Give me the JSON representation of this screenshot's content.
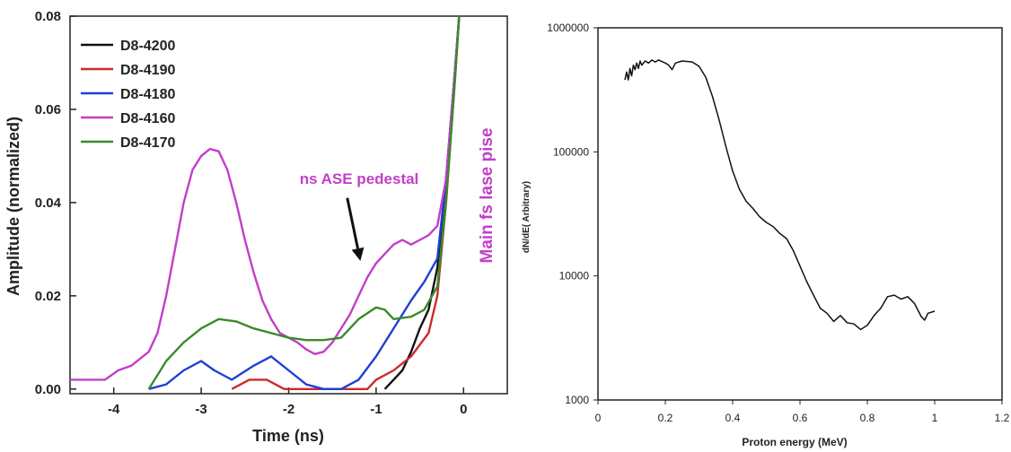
{
  "chart_data": [
    {
      "type": "line",
      "xlabel": "Time (ns)",
      "ylabel": "Amplitude (normalized)",
      "xlim": [
        -4.5,
        0.5
      ],
      "ylim": [
        -0.001,
        0.08
      ],
      "x_ticks": [
        -4,
        -3,
        -2,
        -1,
        0
      ],
      "x_tick_labels": [
        "-4",
        "-3",
        "-2",
        "-1",
        "0"
      ],
      "y_ticks": [
        0.0,
        0.02,
        0.04,
        0.06,
        0.08
      ],
      "y_tick_labels": [
        "0.00",
        "0.02",
        "0.04",
        "0.06",
        "0.08"
      ],
      "grid": false,
      "legend_position": "top-left",
      "annotations": [
        {
          "text": "ns ASE pedestal",
          "color": "#c23fc8",
          "x": -1.5,
          "y": 0.0455
        },
        {
          "text": "Main fs lase pise",
          "color": "#c23fc8",
          "x": 0.3,
          "y": 0.02,
          "rotation": -90
        }
      ],
      "arrow": {
        "from": [
          -1.33,
          0.041
        ],
        "to": [
          -1.18,
          0.0275
        ],
        "color": "#111111"
      },
      "series": [
        {
          "name": "D8-4200",
          "color": "#111111",
          "points": [
            [
              -0.9,
              0.0
            ],
            [
              -0.8,
              0.002
            ],
            [
              -0.7,
              0.004
            ],
            [
              -0.6,
              0.008
            ],
            [
              -0.5,
              0.013
            ],
            [
              -0.4,
              0.017
            ],
            [
              -0.3,
              0.026
            ],
            [
              -0.2,
              0.045
            ],
            [
              -0.1,
              0.068
            ],
            [
              -0.05,
              0.08
            ]
          ]
        },
        {
          "name": "D8-4190",
          "color": "#cc2a2a",
          "points": [
            [
              -2.65,
              0.0
            ],
            [
              -2.45,
              0.002
            ],
            [
              -2.25,
              0.002
            ],
            [
              -2.05,
              0.0
            ],
            [
              -1.1,
              0.0
            ],
            [
              -1.0,
              0.002
            ],
            [
              -0.8,
              0.004
            ],
            [
              -0.6,
              0.007
            ],
            [
              -0.4,
              0.012
            ],
            [
              -0.3,
              0.02
            ],
            [
              -0.2,
              0.04
            ],
            [
              -0.1,
              0.066
            ],
            [
              -0.05,
              0.08
            ]
          ]
        },
        {
          "name": "D8-4180",
          "color": "#1f3fd6",
          "points": [
            [
              -3.6,
              0.0
            ],
            [
              -3.4,
              0.001
            ],
            [
              -3.2,
              0.004
            ],
            [
              -3.0,
              0.006
            ],
            [
              -2.85,
              0.004
            ],
            [
              -2.65,
              0.002
            ],
            [
              -2.4,
              0.005
            ],
            [
              -2.2,
              0.007
            ],
            [
              -2.0,
              0.004
            ],
            [
              -1.8,
              0.001
            ],
            [
              -1.6,
              0.0
            ],
            [
              -1.4,
              0.0
            ],
            [
              -1.2,
              0.002
            ],
            [
              -1.0,
              0.007
            ],
            [
              -0.8,
              0.013
            ],
            [
              -0.6,
              0.019
            ],
            [
              -0.45,
              0.023
            ],
            [
              -0.3,
              0.028
            ],
            [
              -0.2,
              0.045
            ],
            [
              -0.1,
              0.068
            ],
            [
              -0.05,
              0.08
            ]
          ]
        },
        {
          "name": "D8-4160",
          "color": "#c23fc8",
          "points": [
            [
              -4.5,
              0.002
            ],
            [
              -4.3,
              0.002
            ],
            [
              -4.1,
              0.002
            ],
            [
              -3.95,
              0.004
            ],
            [
              -3.8,
              0.005
            ],
            [
              -3.6,
              0.008
            ],
            [
              -3.5,
              0.012
            ],
            [
              -3.4,
              0.02
            ],
            [
              -3.3,
              0.03
            ],
            [
              -3.2,
              0.04
            ],
            [
              -3.1,
              0.047
            ],
            [
              -3.0,
              0.05
            ],
            [
              -2.9,
              0.0515
            ],
            [
              -2.8,
              0.051
            ],
            [
              -2.7,
              0.047
            ],
            [
              -2.6,
              0.04
            ],
            [
              -2.5,
              0.032
            ],
            [
              -2.4,
              0.025
            ],
            [
              -2.3,
              0.019
            ],
            [
              -2.2,
              0.015
            ],
            [
              -2.1,
              0.012
            ],
            [
              -2.0,
              0.011
            ],
            [
              -1.9,
              0.01
            ],
            [
              -1.8,
              0.0085
            ],
            [
              -1.7,
              0.0075
            ],
            [
              -1.6,
              0.008
            ],
            [
              -1.5,
              0.01
            ],
            [
              -1.4,
              0.013
            ],
            [
              -1.3,
              0.016
            ],
            [
              -1.2,
              0.02
            ],
            [
              -1.1,
              0.024
            ],
            [
              -1.0,
              0.027
            ],
            [
              -0.9,
              0.029
            ],
            [
              -0.8,
              0.031
            ],
            [
              -0.7,
              0.032
            ],
            [
              -0.6,
              0.031
            ],
            [
              -0.5,
              0.032
            ],
            [
              -0.4,
              0.033
            ],
            [
              -0.3,
              0.035
            ],
            [
              -0.2,
              0.045
            ],
            [
              -0.1,
              0.068
            ],
            [
              -0.05,
              0.08
            ]
          ]
        },
        {
          "name": "D8-4170",
          "color": "#3a8a2a",
          "points": [
            [
              -3.6,
              0.0
            ],
            [
              -3.5,
              0.003
            ],
            [
              -3.4,
              0.006
            ],
            [
              -3.2,
              0.01
            ],
            [
              -3.0,
              0.013
            ],
            [
              -2.8,
              0.015
            ],
            [
              -2.6,
              0.0145
            ],
            [
              -2.4,
              0.013
            ],
            [
              -2.2,
              0.012
            ],
            [
              -2.0,
              0.011
            ],
            [
              -1.8,
              0.0105
            ],
            [
              -1.6,
              0.0105
            ],
            [
              -1.4,
              0.011
            ],
            [
              -1.3,
              0.013
            ],
            [
              -1.2,
              0.015
            ],
            [
              -1.0,
              0.0175
            ],
            [
              -0.9,
              0.017
            ],
            [
              -0.8,
              0.015
            ],
            [
              -0.6,
              0.0155
            ],
            [
              -0.45,
              0.017
            ],
            [
              -0.3,
              0.022
            ],
            [
              -0.2,
              0.04
            ],
            [
              -0.1,
              0.066
            ],
            [
              -0.05,
              0.08
            ]
          ]
        }
      ]
    },
    {
      "type": "line",
      "xlabel": "Proton energy (MeV)",
      "ylabel": "dN/dE( Arbitrary)",
      "xlim": [
        0,
        1.2
      ],
      "ylim": [
        1000,
        1000000
      ],
      "y_scale": "log",
      "x_ticks": [
        0,
        0.2,
        0.4,
        0.6,
        0.8,
        1,
        1.2
      ],
      "x_tick_labels": [
        "0",
        "0.2",
        "0.4",
        "0.6",
        "0.8",
        "1",
        "1.2"
      ],
      "y_ticks": [
        1000,
        10000,
        100000,
        1000000
      ],
      "y_tick_labels": [
        "1000",
        "10000",
        "100000",
        "1000000"
      ],
      "grid": false,
      "series": [
        {
          "color": "#111111",
          "points": [
            [
              0.08,
              380000
            ],
            [
              0.085,
              440000
            ],
            [
              0.09,
              380000
            ],
            [
              0.095,
              470000
            ],
            [
              0.1,
              410000
            ],
            [
              0.105,
              500000
            ],
            [
              0.11,
              460000
            ],
            [
              0.115,
              520000
            ],
            [
              0.12,
              470000
            ],
            [
              0.125,
              540000
            ],
            [
              0.13,
              500000
            ],
            [
              0.14,
              540000
            ],
            [
              0.15,
              520000
            ],
            [
              0.16,
              550000
            ],
            [
              0.17,
              530000
            ],
            [
              0.18,
              550000
            ],
            [
              0.2,
              520000
            ],
            [
              0.21,
              500000
            ],
            [
              0.22,
              460000
            ],
            [
              0.23,
              520000
            ],
            [
              0.25,
              540000
            ],
            [
              0.28,
              530000
            ],
            [
              0.3,
              490000
            ],
            [
              0.32,
              400000
            ],
            [
              0.34,
              280000
            ],
            [
              0.36,
              180000
            ],
            [
              0.38,
              110000
            ],
            [
              0.4,
              70000
            ],
            [
              0.42,
              50000
            ],
            [
              0.44,
              40000
            ],
            [
              0.46,
              35000
            ],
            [
              0.48,
              30000
            ],
            [
              0.5,
              27000
            ],
            [
              0.52,
              25000
            ],
            [
              0.54,
              22000
            ],
            [
              0.56,
              20000
            ],
            [
              0.58,
              16000
            ],
            [
              0.6,
              12000
            ],
            [
              0.62,
              9000
            ],
            [
              0.64,
              7000
            ],
            [
              0.66,
              5500
            ],
            [
              0.68,
              5000
            ],
            [
              0.7,
              4300
            ],
            [
              0.72,
              4800
            ],
            [
              0.74,
              4200
            ],
            [
              0.76,
              4100
            ],
            [
              0.78,
              3700
            ],
            [
              0.8,
              4000
            ],
            [
              0.82,
              4800
            ],
            [
              0.84,
              5500
            ],
            [
              0.86,
              6800
            ],
            [
              0.88,
              7000
            ],
            [
              0.9,
              6500
            ],
            [
              0.92,
              6800
            ],
            [
              0.94,
              6000
            ],
            [
              0.96,
              4700
            ],
            [
              0.97,
              4400
            ],
            [
              0.98,
              5000
            ],
            [
              1.0,
              5200
            ]
          ]
        }
      ]
    }
  ]
}
